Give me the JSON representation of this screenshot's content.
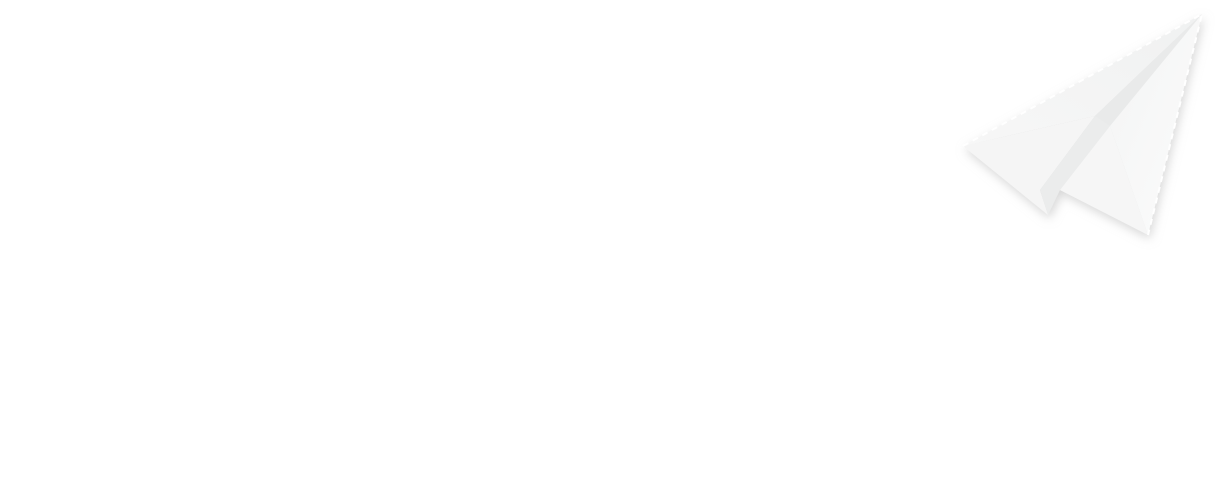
{
  "illustration": {
    "icon": "paper-plane-icon",
    "colors": {
      "background": "#ffffff",
      "paper_light": "#fbfbfb",
      "paper_mid": "#f1f2f2",
      "paper_shade": "#e4e5e5",
      "shadow": "#cfcfcf"
    }
  }
}
